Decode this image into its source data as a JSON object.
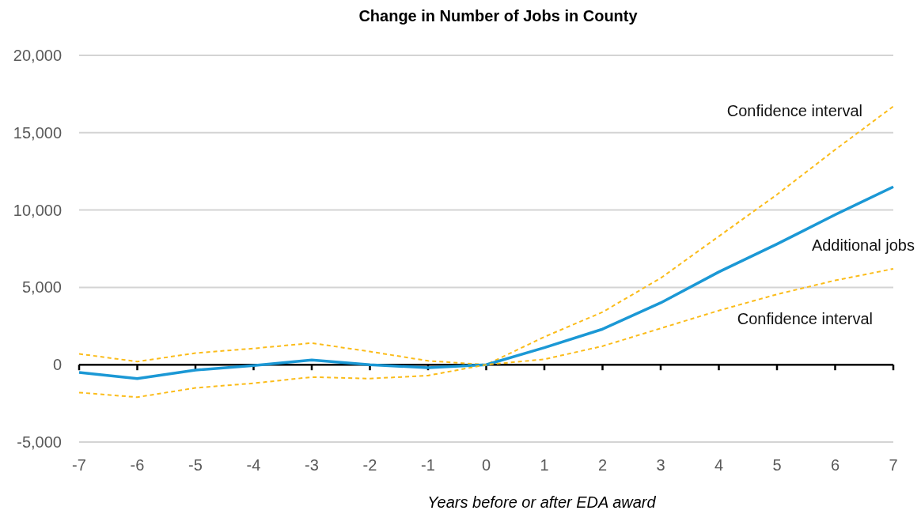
{
  "chart_data": {
    "type": "line",
    "title": "Change in Number of Jobs in County",
    "xlabel": "Years before or after EDA award",
    "x": [
      -7,
      -6,
      -5,
      -4,
      -3,
      -2,
      -1,
      0,
      1,
      2,
      3,
      4,
      5,
      6,
      7
    ],
    "series": [
      {
        "name": "Confidence interval",
        "color": "#fbbc1a",
        "line_style": "dashed",
        "values": [
          700,
          200,
          750,
          1050,
          1400,
          850,
          250,
          0,
          1800,
          3400,
          5600,
          8300,
          11000,
          13900,
          16700
        ]
      },
      {
        "name": "Additional jobs",
        "color": "#1b98d5",
        "line_style": "solid",
        "values": [
          -500,
          -900,
          -350,
          -50,
          300,
          0,
          -200,
          0,
          1100,
          2300,
          4000,
          6000,
          7800,
          9700,
          11500
        ]
      },
      {
        "name": "Confidence interval",
        "color": "#fbbc1a",
        "line_style": "dashed",
        "values": [
          -1800,
          -2100,
          -1500,
          -1200,
          -800,
          -900,
          -700,
          0,
          350,
          1200,
          2350,
          3500,
          4550,
          5450,
          6200
        ]
      }
    ],
    "xlim": [
      -7,
      7
    ],
    "xticks": [
      -7,
      -6,
      -5,
      -4,
      -3,
      -2,
      -1,
      0,
      1,
      2,
      3,
      4,
      5,
      6,
      7
    ],
    "ylim": [
      -5000,
      20000
    ],
    "yticks": [
      {
        "value": -5000,
        "label": "-5,000"
      },
      0,
      {
        "value": 5000,
        "label": "5,000"
      },
      {
        "value": 10000,
        "label": "10,000"
      },
      {
        "value": 15000,
        "label": "15,000"
      },
      {
        "value": 20000,
        "label": "20,000"
      }
    ],
    "grid": "y",
    "marker": "none"
  }
}
